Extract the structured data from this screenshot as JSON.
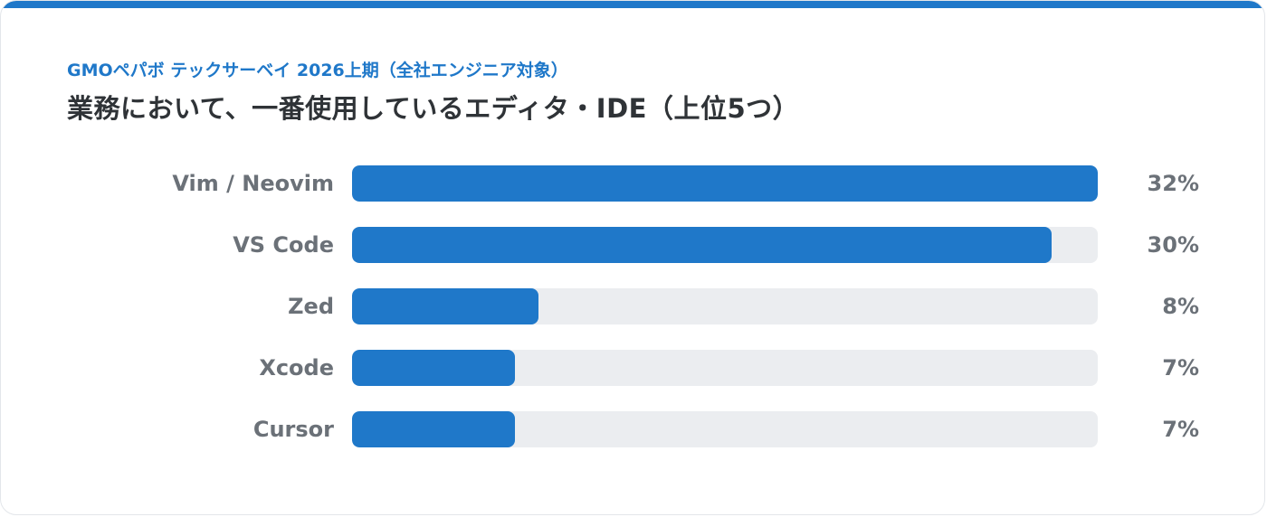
{
  "header": {
    "eyebrow": "GMOペパボ テックサーベイ 2026上期（全社エンジニア対象）",
    "title": "業務において、一番使用しているエディタ・IDE（上位5つ）"
  },
  "colors": {
    "accent": "#1f78c9",
    "track": "#ebedf0",
    "label": "#6b7178",
    "title": "#2f3337"
  },
  "chart_data": {
    "type": "bar",
    "orientation": "horizontal",
    "title": "業務において、一番使用しているエディタ・IDE（上位5つ）",
    "subtitle": "GMOペパボ テックサーベイ 2026上期（全社エンジニア対象）",
    "categories": [
      "Vim / Neovim",
      "VS Code",
      "Zed",
      "Xcode",
      "Cursor"
    ],
    "values": [
      32,
      30,
      8,
      7,
      7
    ],
    "value_labels": [
      "32%",
      "30%",
      "8%",
      "7%",
      "7%"
    ],
    "unit": "%",
    "xlim": [
      0,
      32
    ],
    "grid": false,
    "legend": "none"
  }
}
